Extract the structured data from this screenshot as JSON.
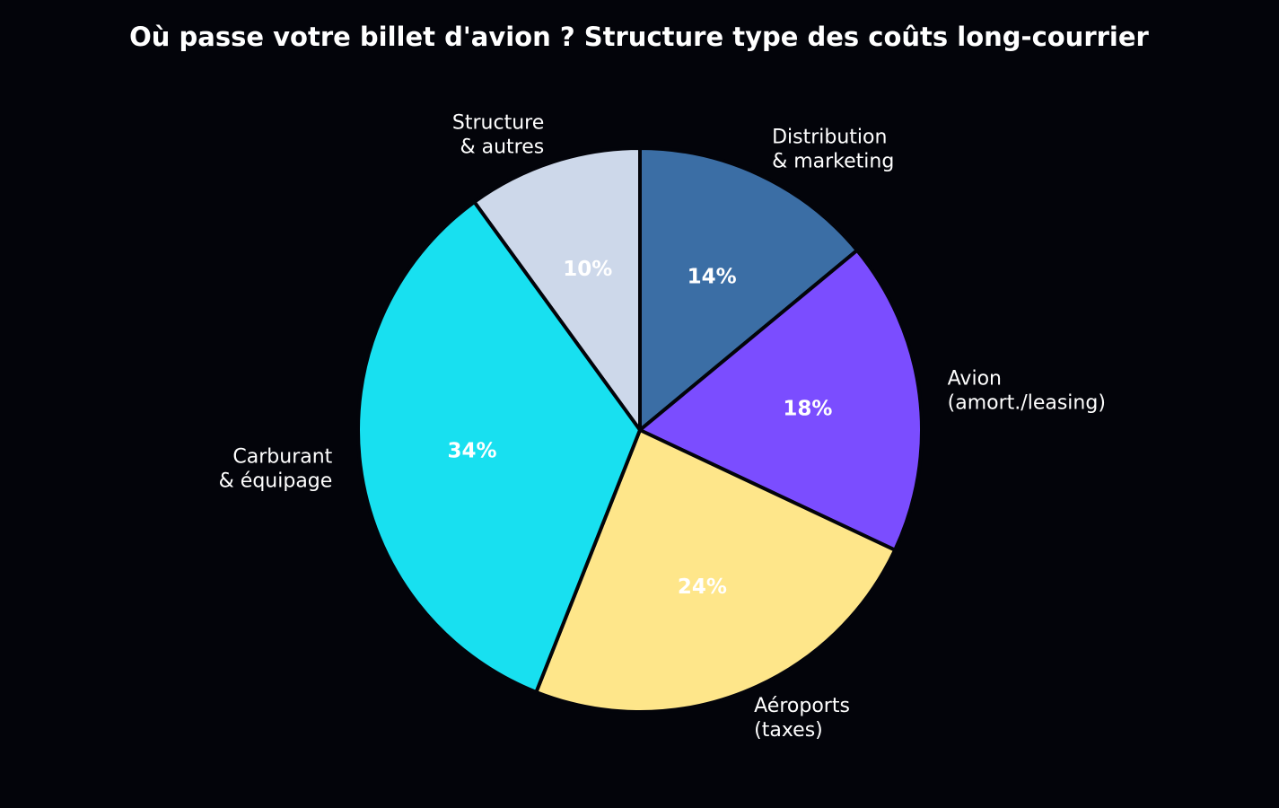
{
  "chart_data": {
    "type": "pie",
    "title": "Où passe votre billet d'avion ? Structure type des coûts long-courrier",
    "slices": [
      {
        "label_lines": [
          "Structure",
          "& autres"
        ],
        "value": 10,
        "pct_label": "10%",
        "color": "#cdd8ea",
        "pct_color": "#ffffff"
      },
      {
        "label_lines": [
          "Distribution",
          "& marketing"
        ],
        "value": 14,
        "pct_label": "14%",
        "color": "#3b6ea5",
        "pct_color": "#ffffff"
      },
      {
        "label_lines": [
          "Avion",
          "(amort./leasing)"
        ],
        "value": 18,
        "pct_label": "18%",
        "color": "#7b4dff",
        "pct_color": "#ffffff"
      },
      {
        "label_lines": [
          "Aéroports",
          "(taxes)"
        ],
        "value": 24,
        "pct_label": "24%",
        "color": "#fee68a",
        "pct_color": "#ffffff"
      },
      {
        "label_lines": [
          "Carburant",
          "& équipage"
        ],
        "value": 34,
        "pct_label": "34%",
        "color": "#18e0f0",
        "pct_color": "#ffffff"
      }
    ],
    "start_angle_deg": 126,
    "direction": "clockwise",
    "legend": "none"
  },
  "colors": {
    "background": "#03040a",
    "text": "#ffffff"
  }
}
